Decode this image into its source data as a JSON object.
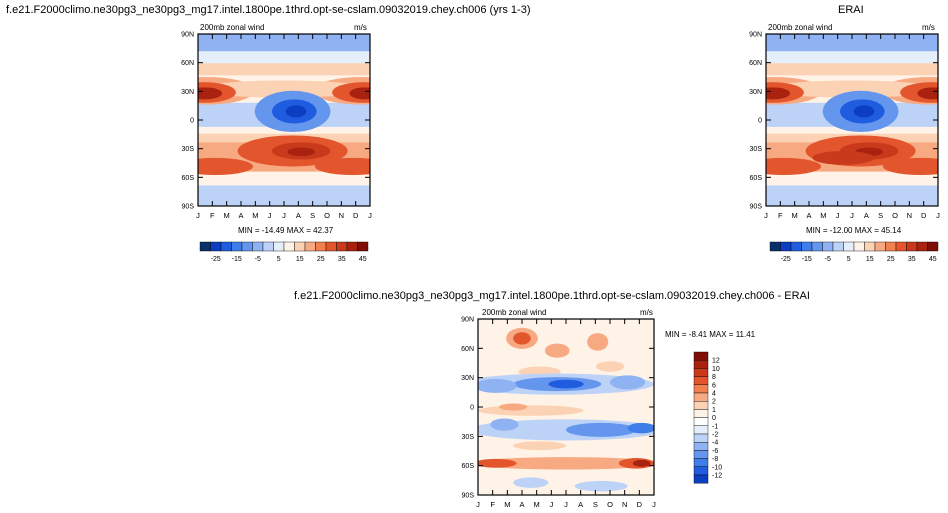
{
  "panels": [
    {
      "id": "model",
      "title": "f.e21.F2000climo.ne30pg3_ne30pg3_mg17.intel.1800pe.1thrd.opt-se-cslam.09032019.chey.ch006 (yrs 1-3)",
      "left_label": "200mb zonal wind",
      "right_label": "m/s",
      "stats": "MIN = -14.49  MAX =  42.37"
    },
    {
      "id": "obs",
      "title": "ERAI",
      "left_label": "200mb zonal wind",
      "right_label": "m/s",
      "stats": "MIN = -12.00  MAX =  45.14"
    },
    {
      "id": "diff",
      "title": "f.e21.F2000climo.ne30pg3_ne30pg3_mg17.intel.1800pe.1thrd.opt-se-cslam.09032019.chey.ch006 - ERAI",
      "left_label": "200mb zonal wind",
      "right_label": "m/s",
      "stats": "MIN =  -8.41  MAX =  11.41"
    }
  ],
  "axes": {
    "y_ticks": [
      "90N",
      "60N",
      "30N",
      "0",
      "30S",
      "60S",
      "90S"
    ],
    "x_ticks": [
      "J",
      "F",
      "M",
      "A",
      "M",
      "J",
      "J",
      "A",
      "S",
      "O",
      "N",
      "D",
      "J"
    ]
  },
  "colorbars": {
    "main": {
      "colors": [
        "#08306b",
        "#0c3ec2",
        "#1f5ce0",
        "#3f7ee8",
        "#6496ee",
        "#8fb2f2",
        "#bdd2f7",
        "#e5eefb",
        "#fff2e6",
        "#fcd2b4",
        "#f7a982",
        "#f08050",
        "#e3562d",
        "#c93a1c",
        "#a92210",
        "#7e0e06"
      ],
      "labels": [
        "-25",
        "-15",
        "-5",
        "5",
        "15",
        "25",
        "35",
        "45"
      ]
    },
    "diff": {
      "colors": [
        "#08306b",
        "#0c3ec2",
        "#1f5ce0",
        "#3f7ee8",
        "#6496ee",
        "#8fb2f2",
        "#bdd2f7",
        "#e5eefb",
        "#ffffff",
        "#fff2e6",
        "#fcd2b4",
        "#f7a982",
        "#f08050",
        "#e3562d",
        "#c93a1c",
        "#a92210",
        "#7e0e06"
      ],
      "labels": [
        "12",
        "10",
        "8",
        "6",
        "4",
        "2",
        "1",
        "0",
        "-1",
        "-2",
        "-4",
        "-6",
        "-8",
        "-10",
        "-12"
      ]
    }
  },
  "chart_data": [
    {
      "type": "heatmap",
      "title": "200mb zonal wind",
      "units": "m/s",
      "x": [
        "J",
        "F",
        "M",
        "A",
        "M",
        "J",
        "J",
        "A",
        "S",
        "O",
        "N",
        "D",
        "J"
      ],
      "y": [
        "90N",
        "60N",
        "30N",
        "0",
        "30S",
        "60S",
        "90S"
      ],
      "stats": {
        "min": -14.49,
        "max": 42.37
      },
      "color_levels": [
        -25,
        -20,
        -15,
        -10,
        -5,
        0,
        5,
        10,
        15,
        20,
        25,
        30,
        35,
        40,
        45
      ]
    },
    {
      "type": "heatmap",
      "title": "200mb zonal wind",
      "units": "m/s",
      "x": [
        "J",
        "F",
        "M",
        "A",
        "M",
        "J",
        "J",
        "A",
        "S",
        "O",
        "N",
        "D",
        "J"
      ],
      "y": [
        "90N",
        "60N",
        "30N",
        "0",
        "30S",
        "60S",
        "90S"
      ],
      "stats": {
        "min": -12.0,
        "max": 45.14
      },
      "color_levels": [
        -25,
        -20,
        -15,
        -10,
        -5,
        0,
        5,
        10,
        15,
        20,
        25,
        30,
        35,
        40,
        45
      ]
    },
    {
      "type": "heatmap",
      "title": "200mb zonal wind",
      "units": "m/s",
      "x": [
        "J",
        "F",
        "M",
        "A",
        "M",
        "J",
        "J",
        "A",
        "S",
        "O",
        "N",
        "D",
        "J"
      ],
      "y": [
        "90N",
        "60N",
        "30N",
        "0",
        "30S",
        "60S",
        "90S"
      ],
      "stats": {
        "min": -8.41,
        "max": 11.41
      },
      "color_levels": [
        -12,
        -10,
        -8,
        -6,
        -4,
        -2,
        -1,
        0,
        1,
        2,
        4,
        6,
        8,
        10,
        12
      ]
    }
  ]
}
